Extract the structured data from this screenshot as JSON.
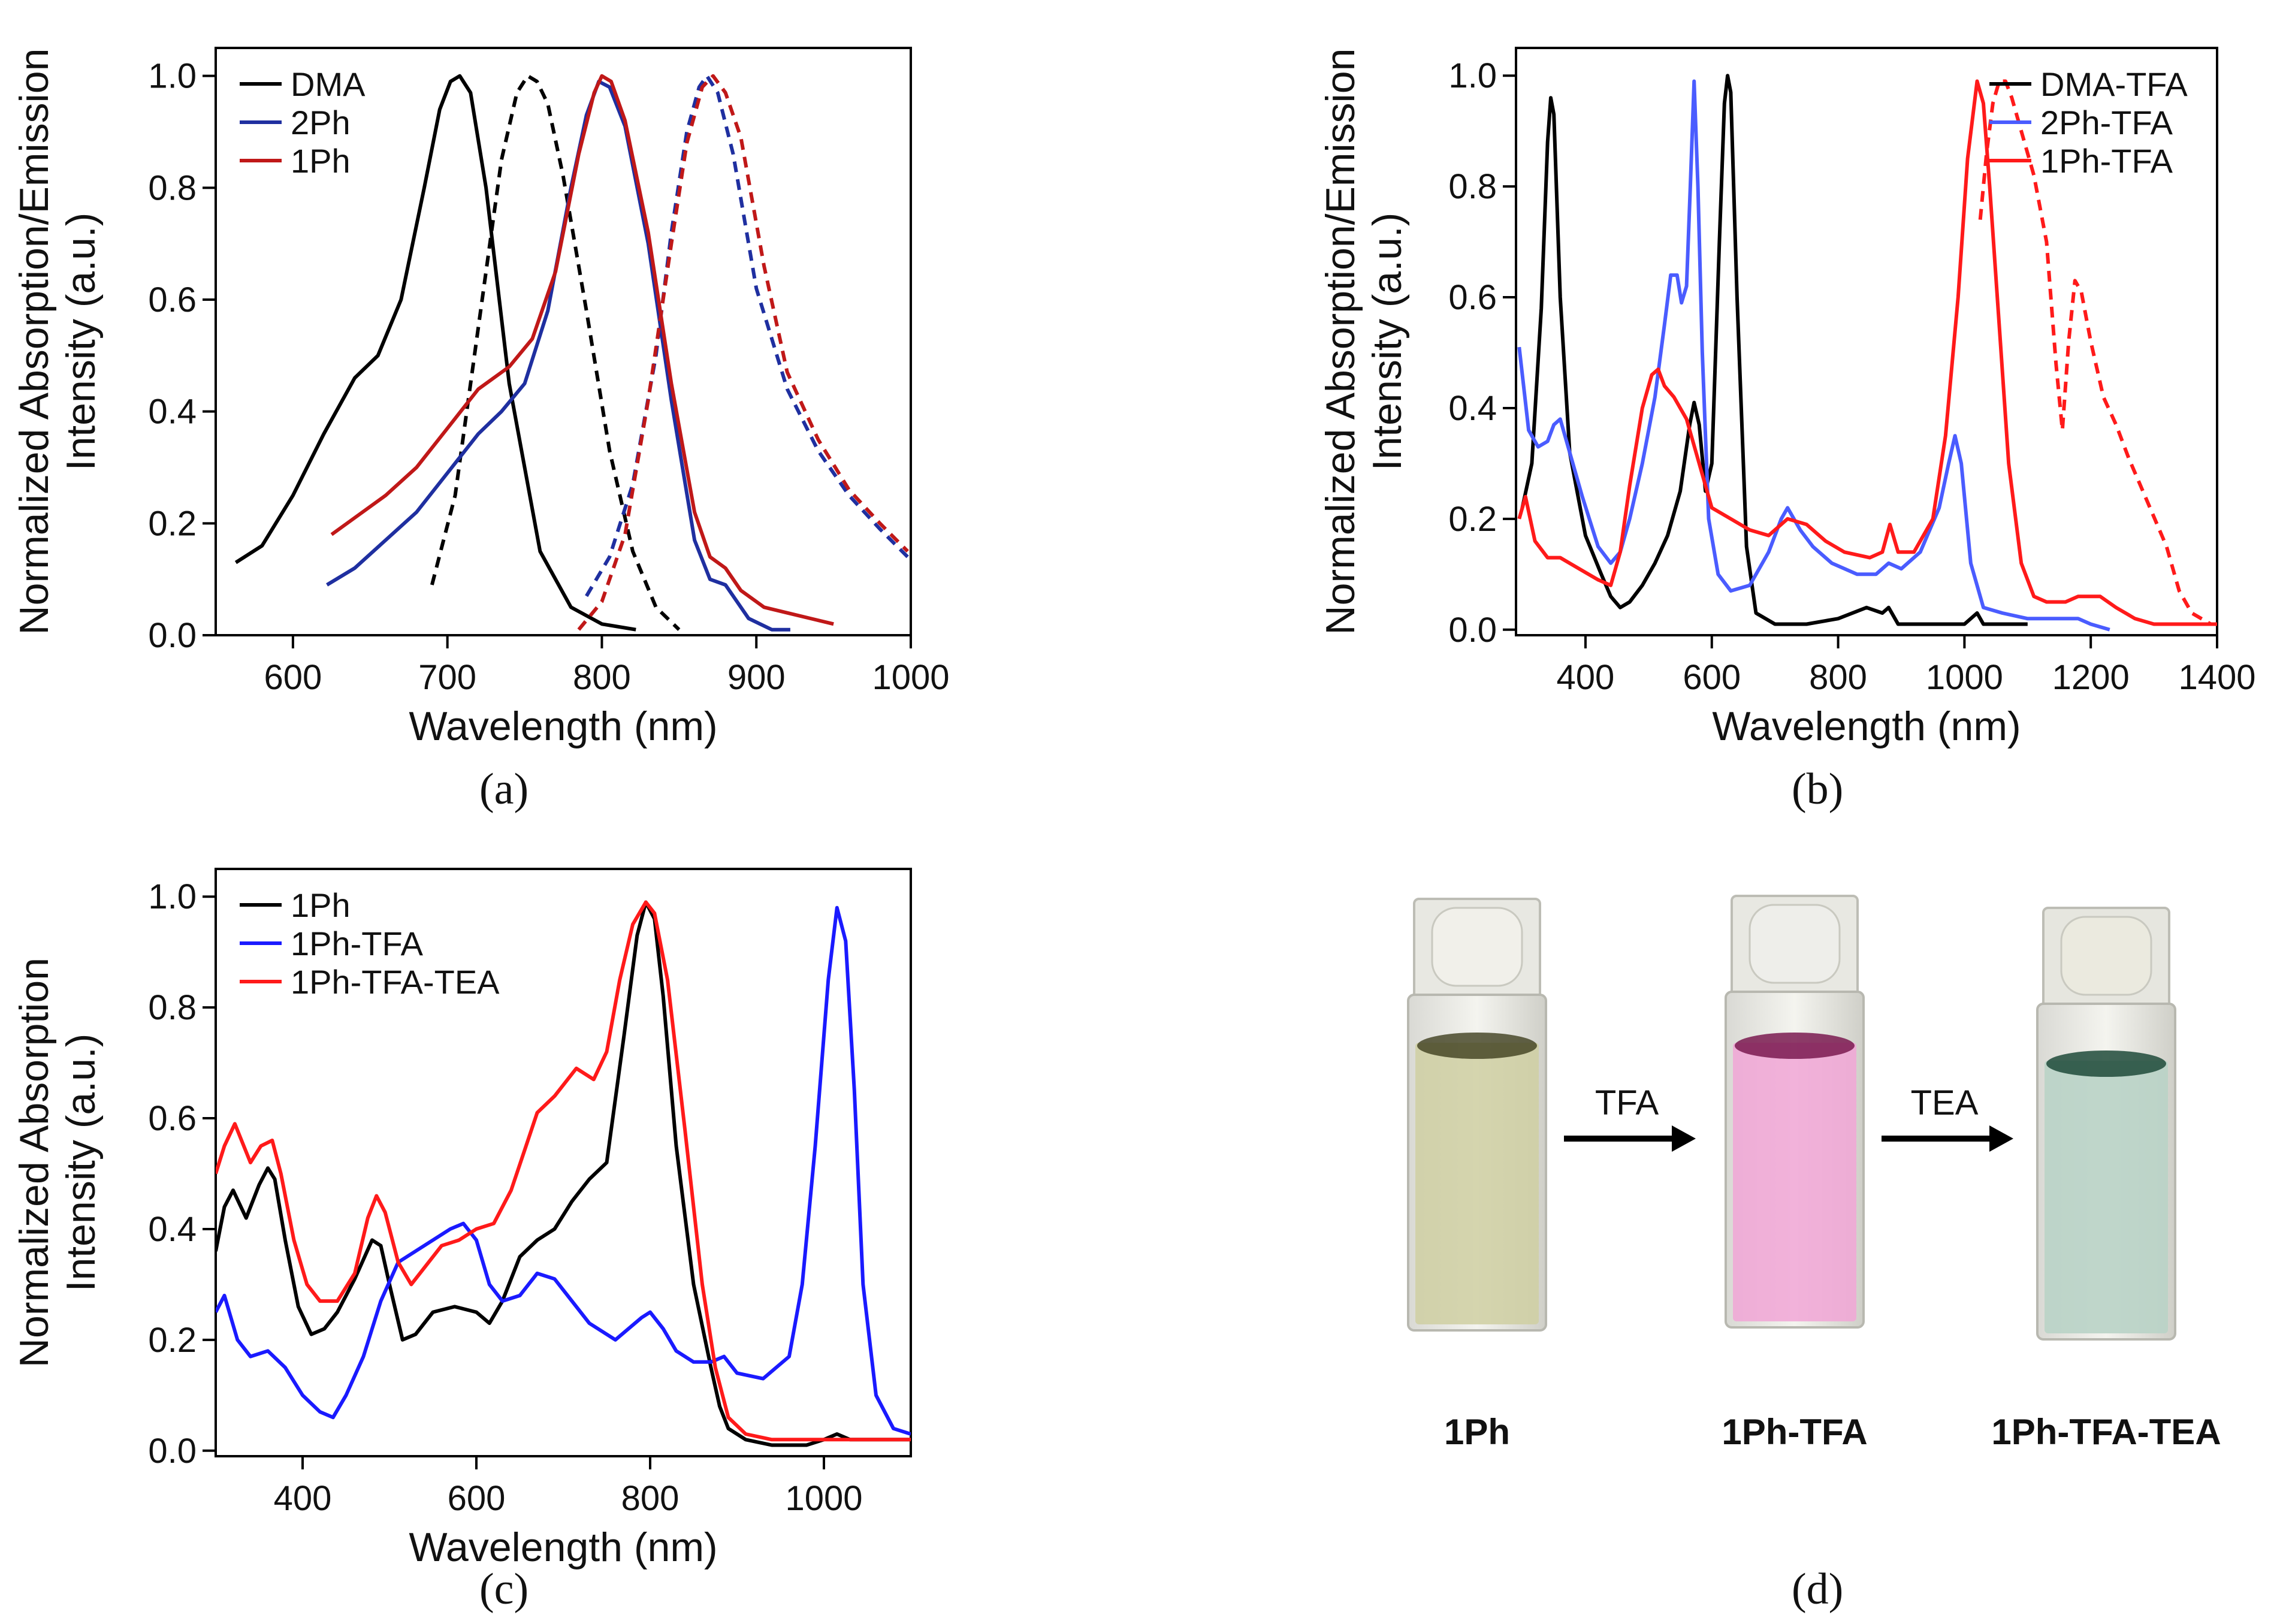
{
  "panels": {
    "a": {
      "label": "(a)"
    },
    "b": {
      "label": "(b)"
    },
    "c": {
      "label": "(c)"
    },
    "d": {
      "label": "(d)"
    }
  },
  "photo": {
    "cuvettes": [
      "1Ph",
      "1Ph-TFA",
      "1Ph-TFA-TEA"
    ],
    "arrows": [
      "TFA",
      "TEA"
    ],
    "colors": {
      "cuvette1": "#cfcfa2",
      "cuvette2": "#f1a6d6",
      "cuvette3": "#b9d3c6"
    }
  },
  "chart_data": [
    {
      "type": "line",
      "xlabel": "Wavelength (nm)",
      "ylabel": [
        "Normalized Absorption/Emission",
        "Intensity (a.u.)"
      ],
      "xlim": [
        550,
        1000
      ],
      "ylim": [
        0,
        1.05
      ],
      "xticks": [
        600,
        700,
        800,
        900,
        1000
      ],
      "yticks": [
        0.0,
        0.2,
        0.4,
        0.6,
        0.8,
        1.0
      ],
      "legend_position": "top-left",
      "legend": [
        {
          "name": "DMA",
          "color": "#000000"
        },
        {
          "name": "2Ph",
          "color": "#1f2fa0"
        },
        {
          "name": "1Ph",
          "color": "#c01818"
        }
      ],
      "series": [
        {
          "name": "DMA",
          "color": "#000000",
          "style": "solid",
          "x": [
            563,
            580,
            600,
            620,
            640,
            655,
            670,
            685,
            695,
            702,
            708,
            715,
            725,
            740,
            760,
            780,
            800,
            822
          ],
          "y": [
            0.13,
            0.16,
            0.25,
            0.36,
            0.46,
            0.5,
            0.6,
            0.8,
            0.94,
            0.99,
            1.0,
            0.97,
            0.8,
            0.45,
            0.15,
            0.05,
            0.02,
            0.01
          ]
        },
        {
          "name": "DMA",
          "color": "#000000",
          "style": "dashed",
          "x": [
            690,
            705,
            720,
            735,
            745,
            752,
            758,
            765,
            775,
            790,
            805,
            820,
            835,
            850
          ],
          "y": [
            0.09,
            0.25,
            0.55,
            0.85,
            0.97,
            1.0,
            0.99,
            0.95,
            0.82,
            0.58,
            0.33,
            0.15,
            0.05,
            0.01
          ]
        },
        {
          "name": "2Ph",
          "color": "#1f2fa0",
          "style": "solid",
          "x": [
            622,
            640,
            660,
            680,
            700,
            720,
            735,
            750,
            765,
            780,
            790,
            798,
            805,
            815,
            830,
            845,
            860,
            870,
            880,
            885,
            895,
            910,
            922
          ],
          "y": [
            0.09,
            0.12,
            0.17,
            0.22,
            0.29,
            0.36,
            0.4,
            0.45,
            0.58,
            0.8,
            0.93,
            0.99,
            0.98,
            0.91,
            0.7,
            0.42,
            0.17,
            0.1,
            0.09,
            0.07,
            0.03,
            0.01,
            0.01
          ]
        },
        {
          "name": "2Ph",
          "color": "#1f2fa0",
          "style": "dashed",
          "x": [
            790,
            805,
            820,
            835,
            845,
            855,
            863,
            868,
            875,
            885,
            900,
            920,
            940,
            960,
            980,
            998
          ],
          "y": [
            0.07,
            0.14,
            0.27,
            0.5,
            0.72,
            0.9,
            0.98,
            1.0,
            0.97,
            0.86,
            0.62,
            0.44,
            0.33,
            0.25,
            0.19,
            0.14
          ]
        },
        {
          "name": "1Ph",
          "color": "#c01818",
          "style": "solid",
          "x": [
            625,
            640,
            660,
            680,
            700,
            720,
            740,
            755,
            770,
            785,
            795,
            800,
            806,
            815,
            830,
            845,
            860,
            870,
            880,
            890,
            905,
            920,
            935,
            950
          ],
          "y": [
            0.18,
            0.21,
            0.25,
            0.3,
            0.37,
            0.44,
            0.48,
            0.53,
            0.65,
            0.86,
            0.97,
            1.0,
            0.99,
            0.92,
            0.72,
            0.45,
            0.22,
            0.14,
            0.12,
            0.08,
            0.05,
            0.04,
            0.03,
            0.02
          ]
        },
        {
          "name": "1Ph",
          "color": "#c01818",
          "style": "dashed",
          "x": [
            785,
            800,
            815,
            830,
            845,
            855,
            865,
            872,
            880,
            890,
            905,
            920,
            940,
            960,
            980,
            998
          ],
          "y": [
            0.01,
            0.06,
            0.18,
            0.42,
            0.7,
            0.88,
            0.98,
            1.0,
            0.97,
            0.89,
            0.66,
            0.47,
            0.35,
            0.26,
            0.2,
            0.15
          ]
        }
      ]
    },
    {
      "type": "line",
      "xlabel": "Wavelength (nm)",
      "ylabel": [
        "Normalized Absorption/Emission",
        "Intensity (a.u.)"
      ],
      "xlim": [
        290,
        1400
      ],
      "ylim": [
        -0.01,
        1.05
      ],
      "xticks": [
        400,
        600,
        800,
        1000,
        1200,
        1400
      ],
      "yticks": [
        0.0,
        0.2,
        0.4,
        0.6,
        0.8,
        1.0
      ],
      "legend_position": "top-right",
      "legend": [
        {
          "name": "DMA-TFA",
          "color": "#000000"
        },
        {
          "name": "2Ph-TFA",
          "color": "#4a5cff"
        },
        {
          "name": "1Ph-TFA",
          "color": "#ff1a1a"
        }
      ],
      "series": [
        {
          "name": "DMA-TFA",
          "color": "#000000",
          "style": "solid",
          "x": [
            300,
            315,
            330,
            340,
            345,
            350,
            360,
            375,
            400,
            425,
            440,
            455,
            470,
            490,
            510,
            530,
            550,
            565,
            572,
            580,
            590,
            600,
            612,
            620,
            625,
            630,
            640,
            655,
            670,
            700,
            750,
            800,
            845,
            870,
            880,
            895,
            920,
            960,
            1000,
            1020,
            1030,
            1060,
            1100
          ],
          "y": [
            0.22,
            0.3,
            0.58,
            0.88,
            0.96,
            0.93,
            0.6,
            0.32,
            0.17,
            0.1,
            0.06,
            0.04,
            0.05,
            0.08,
            0.12,
            0.17,
            0.25,
            0.37,
            0.41,
            0.37,
            0.25,
            0.3,
            0.7,
            0.95,
            1.0,
            0.97,
            0.6,
            0.15,
            0.03,
            0.01,
            0.01,
            0.02,
            0.04,
            0.03,
            0.04,
            0.01,
            0.01,
            0.01,
            0.01,
            0.03,
            0.01,
            0.01,
            0.01
          ]
        },
        {
          "name": "2Ph-TFA",
          "color": "#4a5cff",
          "style": "solid",
          "x": [
            295,
            310,
            325,
            340,
            350,
            360,
            375,
            395,
            420,
            440,
            455,
            470,
            490,
            510,
            525,
            535,
            545,
            552,
            560,
            566,
            572,
            578,
            585,
            595,
            610,
            630,
            660,
            690,
            710,
            720,
            740,
            760,
            790,
            830,
            860,
            880,
            900,
            930,
            960,
            975,
            985,
            995,
            1010,
            1030,
            1060,
            1100,
            1150,
            1180,
            1200,
            1230
          ],
          "y": [
            0.51,
            0.36,
            0.33,
            0.34,
            0.37,
            0.38,
            0.32,
            0.24,
            0.15,
            0.12,
            0.14,
            0.2,
            0.3,
            0.42,
            0.55,
            0.64,
            0.64,
            0.59,
            0.62,
            0.8,
            0.99,
            0.8,
            0.5,
            0.2,
            0.1,
            0.07,
            0.08,
            0.14,
            0.2,
            0.22,
            0.18,
            0.15,
            0.12,
            0.1,
            0.1,
            0.12,
            0.11,
            0.14,
            0.22,
            0.3,
            0.35,
            0.3,
            0.12,
            0.04,
            0.03,
            0.02,
            0.02,
            0.02,
            0.01,
            0.0
          ]
        },
        {
          "name": "1Ph-TFA",
          "color": "#ff1a1a",
          "style": "solid",
          "x": [
            295,
            305,
            320,
            340,
            360,
            390,
            420,
            440,
            455,
            470,
            490,
            505,
            515,
            525,
            540,
            560,
            580,
            600,
            630,
            660,
            690,
            720,
            750,
            780,
            810,
            850,
            870,
            882,
            895,
            920,
            950,
            970,
            990,
            1005,
            1020,
            1030,
            1040,
            1055,
            1070,
            1090,
            1110,
            1130,
            1160,
            1180,
            1200,
            1215,
            1240,
            1270,
            1300,
            1330,
            1360,
            1400
          ],
          "y": [
            0.2,
            0.24,
            0.16,
            0.13,
            0.13,
            0.11,
            0.09,
            0.08,
            0.14,
            0.26,
            0.4,
            0.46,
            0.47,
            0.44,
            0.42,
            0.38,
            0.3,
            0.22,
            0.2,
            0.18,
            0.17,
            0.2,
            0.19,
            0.16,
            0.14,
            0.13,
            0.14,
            0.19,
            0.14,
            0.14,
            0.2,
            0.35,
            0.6,
            0.85,
            0.99,
            0.95,
            0.8,
            0.55,
            0.3,
            0.12,
            0.06,
            0.05,
            0.05,
            0.06,
            0.06,
            0.06,
            0.04,
            0.02,
            0.01,
            0.01,
            0.01,
            0.01
          ]
        },
        {
          "name": "1Ph-TFA",
          "color": "#ff1a1a",
          "style": "dashed",
          "x": [
            1025,
            1035,
            1045,
            1055,
            1065,
            1075,
            1090,
            1110,
            1130,
            1145,
            1155,
            1165,
            1175,
            1185,
            1200,
            1220,
            1240,
            1260,
            1290,
            1320,
            1340,
            1360,
            1390
          ],
          "y": [
            0.74,
            0.86,
            0.95,
            0.99,
            0.99,
            0.96,
            0.9,
            0.82,
            0.7,
            0.48,
            0.36,
            0.52,
            0.63,
            0.61,
            0.52,
            0.42,
            0.37,
            0.31,
            0.23,
            0.15,
            0.07,
            0.03,
            0.01
          ]
        }
      ]
    },
    {
      "type": "line",
      "xlabel": "Wavelength (nm)",
      "ylabel": [
        "Normalized Absorption",
        "Intensity (a.u.)"
      ],
      "xlim": [
        300,
        1100
      ],
      "ylim": [
        -0.01,
        1.05
      ],
      "xticks": [
        400,
        600,
        800,
        1000
      ],
      "yticks": [
        0.0,
        0.2,
        0.4,
        0.6,
        0.8,
        1.0
      ],
      "legend_position": "top-left",
      "legend": [
        {
          "name": "1Ph",
          "color": "#000000"
        },
        {
          "name": "1Ph-TFA",
          "color": "#1a1aff"
        },
        {
          "name": "1Ph-TFA-TEA",
          "color": "#ff1a1a"
        }
      ],
      "series": [
        {
          "name": "1Ph",
          "color": "#000000",
          "style": "solid",
          "x": [
            300,
            310,
            320,
            335,
            350,
            360,
            368,
            380,
            395,
            410,
            425,
            440,
            460,
            480,
            490,
            500,
            515,
            530,
            550,
            575,
            600,
            615,
            630,
            650,
            670,
            690,
            710,
            730,
            750,
            770,
            785,
            795,
            805,
            815,
            830,
            850,
            870,
            880,
            890,
            910,
            940,
            980,
            1000,
            1015,
            1030,
            1060,
            1100
          ],
          "y": [
            0.36,
            0.44,
            0.47,
            0.42,
            0.48,
            0.51,
            0.49,
            0.38,
            0.26,
            0.21,
            0.22,
            0.25,
            0.31,
            0.38,
            0.37,
            0.3,
            0.2,
            0.21,
            0.25,
            0.26,
            0.25,
            0.23,
            0.27,
            0.35,
            0.38,
            0.4,
            0.45,
            0.49,
            0.52,
            0.75,
            0.93,
            0.99,
            0.96,
            0.82,
            0.55,
            0.3,
            0.15,
            0.08,
            0.04,
            0.02,
            0.01,
            0.01,
            0.02,
            0.03,
            0.02,
            0.02,
            0.02
          ]
        },
        {
          "name": "1Ph-TFA",
          "color": "#1a1aff",
          "style": "solid",
          "x": [
            300,
            310,
            325,
            340,
            360,
            380,
            400,
            420,
            435,
            450,
            470,
            490,
            510,
            530,
            550,
            570,
            585,
            600,
            615,
            630,
            650,
            670,
            690,
            710,
            730,
            760,
            790,
            800,
            815,
            830,
            850,
            870,
            885,
            900,
            930,
            960,
            975,
            990,
            1005,
            1015,
            1025,
            1035,
            1045,
            1060,
            1080,
            1100
          ],
          "y": [
            0.25,
            0.28,
            0.2,
            0.17,
            0.18,
            0.15,
            0.1,
            0.07,
            0.06,
            0.1,
            0.17,
            0.27,
            0.34,
            0.36,
            0.38,
            0.4,
            0.41,
            0.38,
            0.3,
            0.27,
            0.28,
            0.32,
            0.31,
            0.27,
            0.23,
            0.2,
            0.24,
            0.25,
            0.22,
            0.18,
            0.16,
            0.16,
            0.17,
            0.14,
            0.13,
            0.17,
            0.3,
            0.55,
            0.85,
            0.98,
            0.92,
            0.65,
            0.3,
            0.1,
            0.04,
            0.03
          ]
        },
        {
          "name": "1Ph-TFA-TEA",
          "color": "#ff1a1a",
          "style": "solid",
          "x": [
            300,
            310,
            322,
            340,
            352,
            365,
            375,
            390,
            405,
            420,
            440,
            460,
            475,
            485,
            495,
            510,
            525,
            545,
            560,
            580,
            600,
            620,
            640,
            655,
            670,
            690,
            715,
            735,
            750,
            765,
            780,
            795,
            805,
            820,
            840,
            860,
            875,
            890,
            910,
            940,
            970,
            1000,
            1020,
            1040,
            1070,
            1100
          ],
          "y": [
            0.5,
            0.55,
            0.59,
            0.52,
            0.55,
            0.56,
            0.5,
            0.38,
            0.3,
            0.27,
            0.27,
            0.32,
            0.42,
            0.46,
            0.43,
            0.34,
            0.3,
            0.34,
            0.37,
            0.38,
            0.4,
            0.41,
            0.47,
            0.54,
            0.61,
            0.64,
            0.69,
            0.67,
            0.72,
            0.85,
            0.95,
            0.99,
            0.97,
            0.85,
            0.58,
            0.3,
            0.15,
            0.06,
            0.03,
            0.02,
            0.02,
            0.02,
            0.02,
            0.02,
            0.02,
            0.02
          ]
        }
      ]
    }
  ]
}
